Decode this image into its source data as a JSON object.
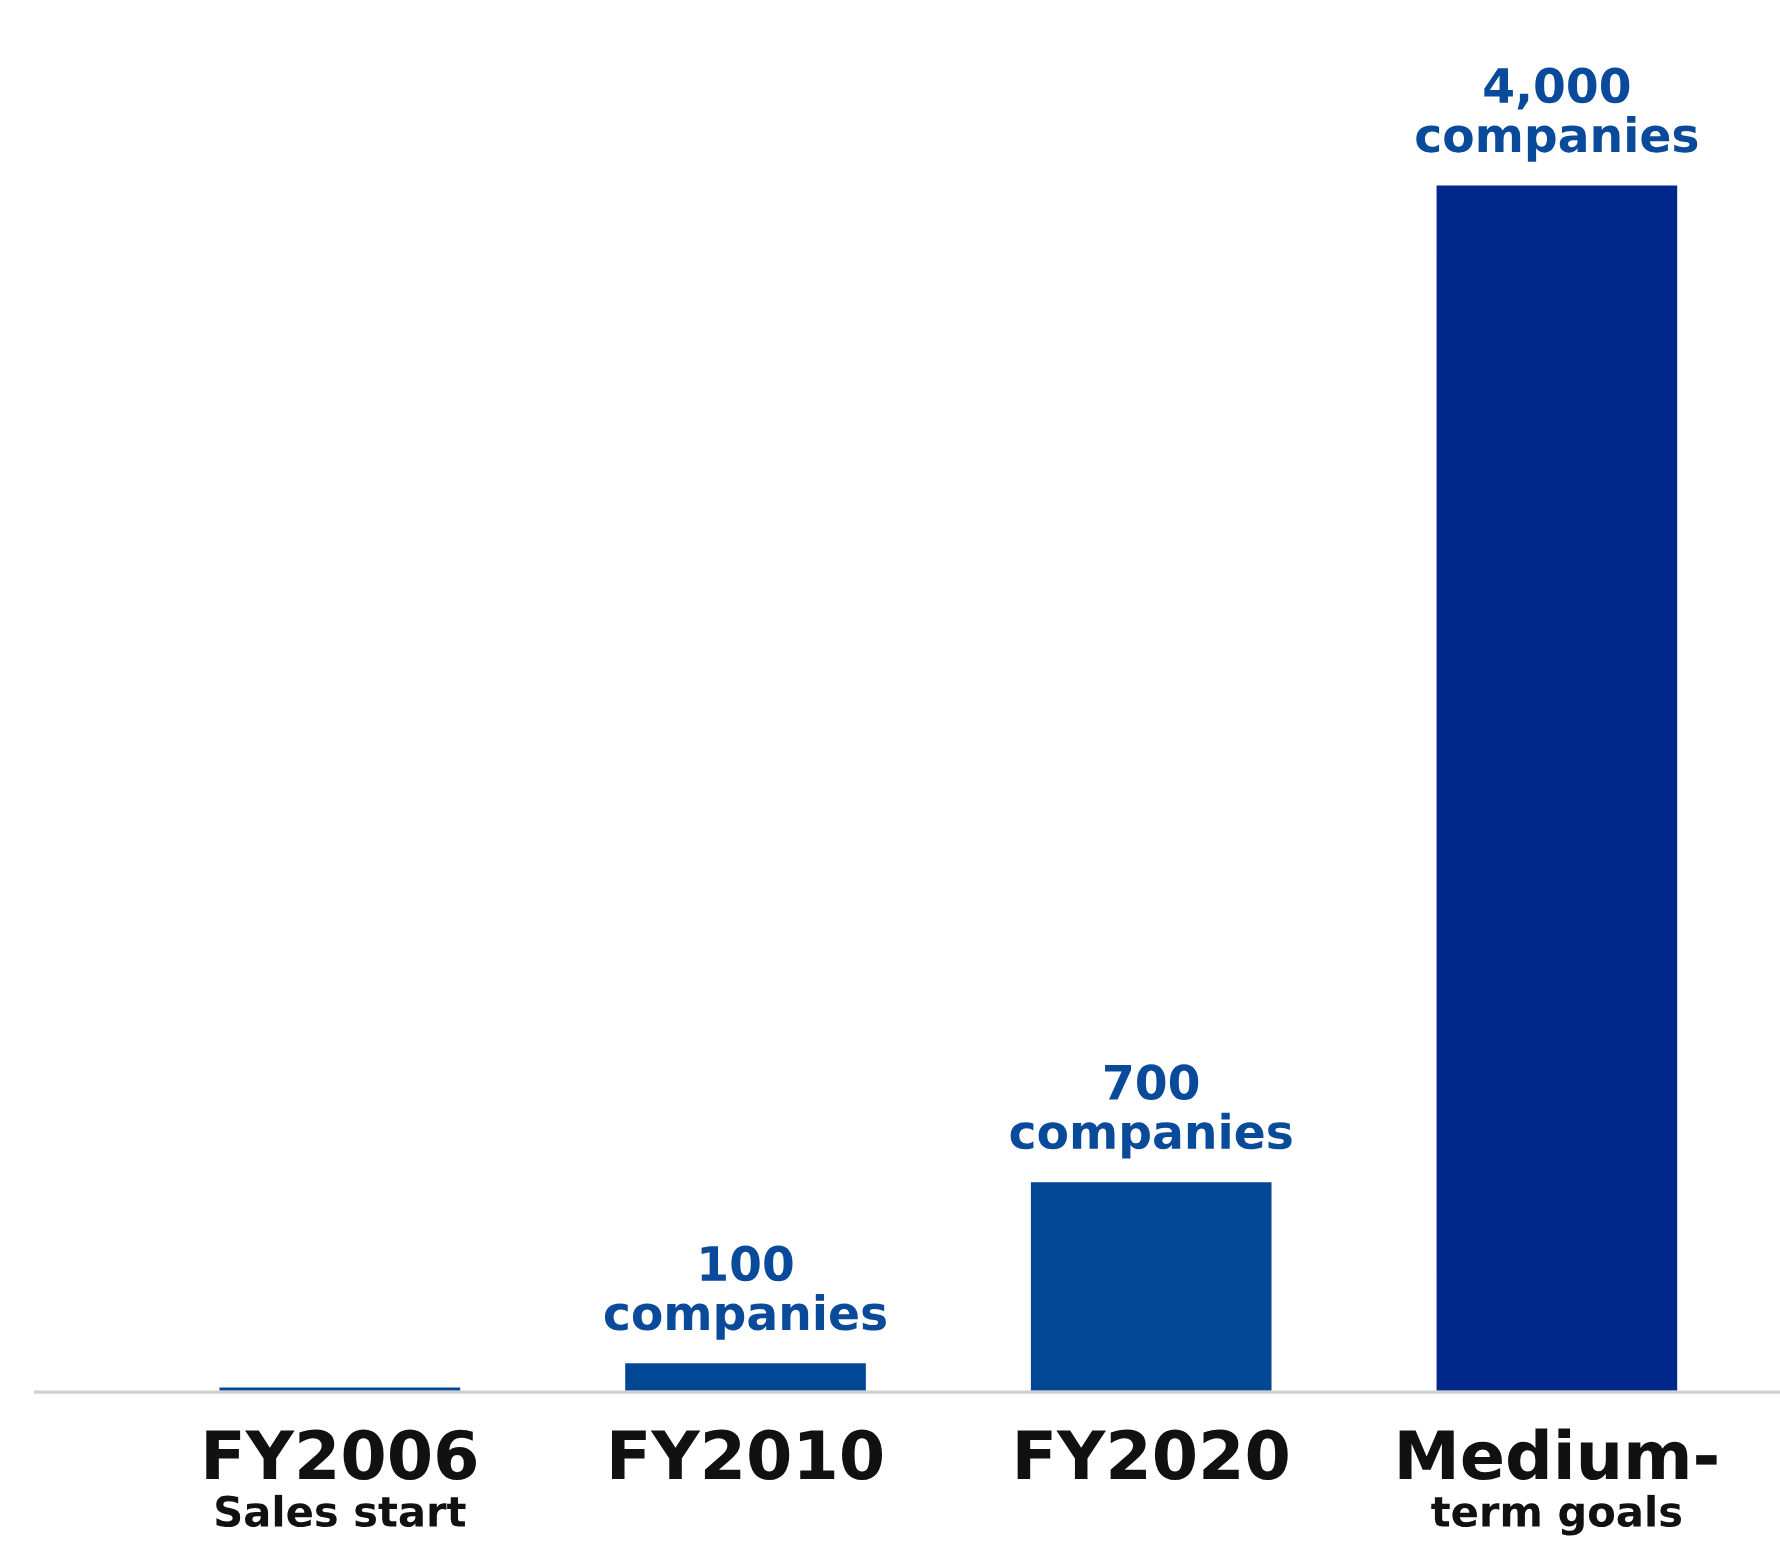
{
  "chart_data": {
    "type": "bar",
    "categories": [
      "FY2006\nSales start",
      "FY2010",
      "FY2020",
      "Medium-\nterm goals"
    ],
    "values": [
      20,
      100,
      700,
      4000
    ],
    "colors": [
      "#004896",
      "#004896",
      "#004896",
      "#00288c"
    ],
    "value_labels": [
      null,
      "100\ncompanies",
      "700\ncompanies",
      "4,000\ncompanies"
    ],
    "tick_labels": "x"
  }
}
